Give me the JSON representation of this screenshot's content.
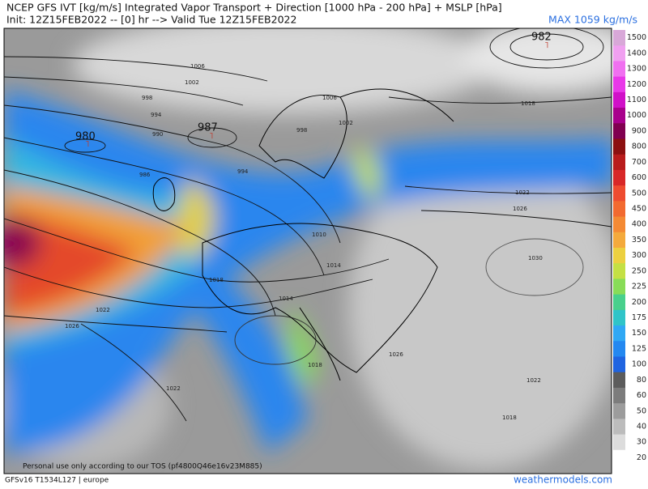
{
  "header": {
    "title": "NCEP GFS IVT [kg/m/s] Integrated Vapor Transport + Direction [1000 hPa - 200 hPa] + MSLP [hPa]",
    "init": "Init: 12Z15FEB2022 -- [0] hr --> Valid Tue 12Z15FEB2022",
    "max": "MAX 1059 kg/m/s"
  },
  "map": {
    "lows": [
      "980",
      "987",
      "982"
    ],
    "isobars": [
      "1006",
      "1002",
      "998",
      "994",
      "990",
      "986",
      "1006",
      "1002",
      "998",
      "994",
      "1010",
      "1014",
      "1018",
      "1022",
      "1026",
      "1030",
      "1026",
      "1022",
      "1018",
      "1014",
      "1018",
      "1022",
      "1026",
      "1022",
      "1018"
    ],
    "notice": "Personal use only according to our TOS (pf4800Q46e16v23M885)"
  },
  "colorbar": {
    "levels": [
      {
        "label": 1500,
        "color": "#d8a8d8"
      },
      {
        "label": 1400,
        "color": "#f0a0f0"
      },
      {
        "label": 1300,
        "color": "#f070f0"
      },
      {
        "label": 1200,
        "color": "#e838e8"
      },
      {
        "label": 1100,
        "color": "#d010c8"
      },
      {
        "label": 1000,
        "color": "#a8008c"
      },
      {
        "label": 900,
        "color": "#800050"
      },
      {
        "label": 800,
        "color": "#8c1010"
      },
      {
        "label": 700,
        "color": "#b81c1c"
      },
      {
        "label": 600,
        "color": "#d82828"
      },
      {
        "label": 500,
        "color": "#ee4c30"
      },
      {
        "label": 450,
        "color": "#f26a30"
      },
      {
        "label": 400,
        "color": "#f48a34"
      },
      {
        "label": 350,
        "color": "#f4aa3c"
      },
      {
        "label": 300,
        "color": "#ecd040"
      },
      {
        "label": 250,
        "color": "#c4e044"
      },
      {
        "label": 225,
        "color": "#88dc58"
      },
      {
        "label": 200,
        "color": "#48d08c"
      },
      {
        "label": 175,
        "color": "#30c4c8"
      },
      {
        "label": 150,
        "color": "#30a8f4"
      },
      {
        "label": 125,
        "color": "#2488f0"
      },
      {
        "label": 100,
        "color": "#2064e0"
      },
      {
        "label": 80,
        "color": "#5c5c5c"
      },
      {
        "label": 60,
        "color": "#7c7c7c"
      },
      {
        "label": 50,
        "color": "#9c9c9c"
      },
      {
        "label": 40,
        "color": "#bcbcbc"
      },
      {
        "label": 30,
        "color": "#dcdcdc"
      },
      {
        "label": 20,
        "color": "#ffffff"
      }
    ]
  },
  "footer": {
    "model": "GFSv16 T1534L127 | europe",
    "site": "weathermodels.com"
  }
}
